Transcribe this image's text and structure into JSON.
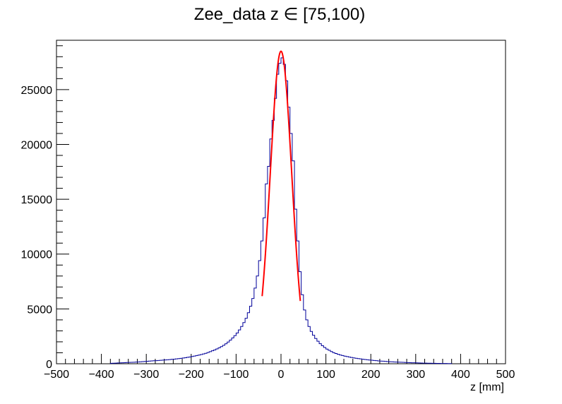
{
  "chart_data": {
    "type": "histogram",
    "title": "Zee_data z  ∈ [75,100)",
    "xlabel": "z [mm]",
    "ylabel": "",
    "xlim": [
      -500,
      500
    ],
    "ylim": [
      0,
      29500
    ],
    "x_ticks": [
      "−500",
      "−400",
      "−300",
      "−200",
      "−100",
      "0",
      "100",
      "200",
      "300",
      "400",
      "500"
    ],
    "y_ticks": [
      "0",
      "5000",
      "10000",
      "15000",
      "20000",
      "25000"
    ],
    "grid": false,
    "legend": "none",
    "bin_width": 5,
    "series": [
      {
        "kind": "histogram",
        "color": "#000099",
        "bins": [
          [
            -380,
            40
          ],
          [
            -375,
            50
          ],
          [
            -370,
            60
          ],
          [
            -365,
            70
          ],
          [
            -360,
            80
          ],
          [
            -355,
            90
          ],
          [
            -350,
            100
          ],
          [
            -345,
            110
          ],
          [
            -340,
            120
          ],
          [
            -335,
            130
          ],
          [
            -330,
            140
          ],
          [
            -325,
            150
          ],
          [
            -320,
            165
          ],
          [
            -315,
            180
          ],
          [
            -310,
            195
          ],
          [
            -305,
            210
          ],
          [
            -300,
            225
          ],
          [
            -295,
            240
          ],
          [
            -290,
            255
          ],
          [
            -285,
            270
          ],
          [
            -280,
            285
          ],
          [
            -275,
            300
          ],
          [
            -270,
            315
          ],
          [
            -265,
            330
          ],
          [
            -260,
            345
          ],
          [
            -255,
            360
          ],
          [
            -250,
            380
          ],
          [
            -245,
            400
          ],
          [
            -240,
            420
          ],
          [
            -235,
            440
          ],
          [
            -230,
            465
          ],
          [
            -225,
            490
          ],
          [
            -220,
            520
          ],
          [
            -215,
            550
          ],
          [
            -210,
            585
          ],
          [
            -205,
            620
          ],
          [
            -200,
            660
          ],
          [
            -195,
            700
          ],
          [
            -190,
            745
          ],
          [
            -185,
            790
          ],
          [
            -180,
            840
          ],
          [
            -175,
            890
          ],
          [
            -170,
            950
          ],
          [
            -165,
            1020
          ],
          [
            -160,
            1100
          ],
          [
            -155,
            1180
          ],
          [
            -150,
            1260
          ],
          [
            -145,
            1350
          ],
          [
            -140,
            1450
          ],
          [
            -135,
            1560
          ],
          [
            -130,
            1680
          ],
          [
            -125,
            1820
          ],
          [
            -120,
            1980
          ],
          [
            -115,
            2160
          ],
          [
            -110,
            2350
          ],
          [
            -105,
            2560
          ],
          [
            -100,
            2800
          ],
          [
            -95,
            3080
          ],
          [
            -90,
            3400
          ],
          [
            -85,
            3750
          ],
          [
            -80,
            4150
          ],
          [
            -75,
            4650
          ],
          [
            -70,
            5250
          ],
          [
            -65,
            5950
          ],
          [
            -60,
            6900
          ],
          [
            -55,
            8000
          ],
          [
            -50,
            9400
          ],
          [
            -45,
            11200
          ],
          [
            -40,
            13300
          ],
          [
            -35,
            16400
          ],
          [
            -30,
            18000
          ],
          [
            -25,
            20500
          ],
          [
            -20,
            22200
          ],
          [
            -15,
            24200
          ],
          [
            -10,
            26400
          ],
          [
            -5,
            27400
          ],
          [
            0,
            27900
          ],
          [
            5,
            27300
          ],
          [
            10,
            25800
          ],
          [
            15,
            23400
          ],
          [
            20,
            21000
          ],
          [
            25,
            18500
          ],
          [
            30,
            14100
          ],
          [
            35,
            11200
          ],
          [
            40,
            8400
          ],
          [
            45,
            6300
          ],
          [
            50,
            4900
          ],
          [
            55,
            4000
          ],
          [
            60,
            3400
          ],
          [
            65,
            2950
          ],
          [
            70,
            2600
          ],
          [
            75,
            2300
          ],
          [
            80,
            2050
          ],
          [
            85,
            1830
          ],
          [
            90,
            1640
          ],
          [
            95,
            1480
          ],
          [
            100,
            1340
          ],
          [
            105,
            1220
          ],
          [
            110,
            1110
          ],
          [
            115,
            1010
          ],
          [
            120,
            930
          ],
          [
            125,
            860
          ],
          [
            130,
            800
          ],
          [
            135,
            745
          ],
          [
            140,
            695
          ],
          [
            145,
            650
          ],
          [
            150,
            610
          ],
          [
            155,
            570
          ],
          [
            160,
            535
          ],
          [
            165,
            500
          ],
          [
            170,
            470
          ],
          [
            175,
            440
          ],
          [
            180,
            410
          ],
          [
            185,
            385
          ],
          [
            190,
            360
          ],
          [
            195,
            340
          ],
          [
            200,
            320
          ],
          [
            205,
            300
          ],
          [
            210,
            280
          ],
          [
            215,
            260
          ],
          [
            220,
            245
          ],
          [
            225,
            230
          ],
          [
            230,
            215
          ],
          [
            235,
            200
          ],
          [
            240,
            188
          ],
          [
            245,
            176
          ],
          [
            250,
            165
          ],
          [
            255,
            155
          ],
          [
            260,
            145
          ],
          [
            265,
            135
          ],
          [
            270,
            125
          ],
          [
            275,
            116
          ],
          [
            280,
            108
          ],
          [
            285,
            100
          ],
          [
            290,
            92
          ],
          [
            295,
            85
          ],
          [
            300,
            78
          ],
          [
            305,
            72
          ],
          [
            310,
            66
          ],
          [
            315,
            60
          ],
          [
            320,
            55
          ],
          [
            325,
            50
          ],
          [
            330,
            45
          ],
          [
            335,
            41
          ],
          [
            340,
            37
          ],
          [
            345,
            33
          ],
          [
            350,
            30
          ],
          [
            355,
            27
          ],
          [
            360,
            24
          ],
          [
            365,
            21
          ],
          [
            370,
            18
          ],
          [
            375,
            15
          ]
        ]
      },
      {
        "kind": "fit",
        "color": "#ff0000",
        "function": "gaussian",
        "amplitude": 28500,
        "mean": 0,
        "sigma": 24,
        "x_range": [
          -42,
          43
        ]
      }
    ]
  }
}
